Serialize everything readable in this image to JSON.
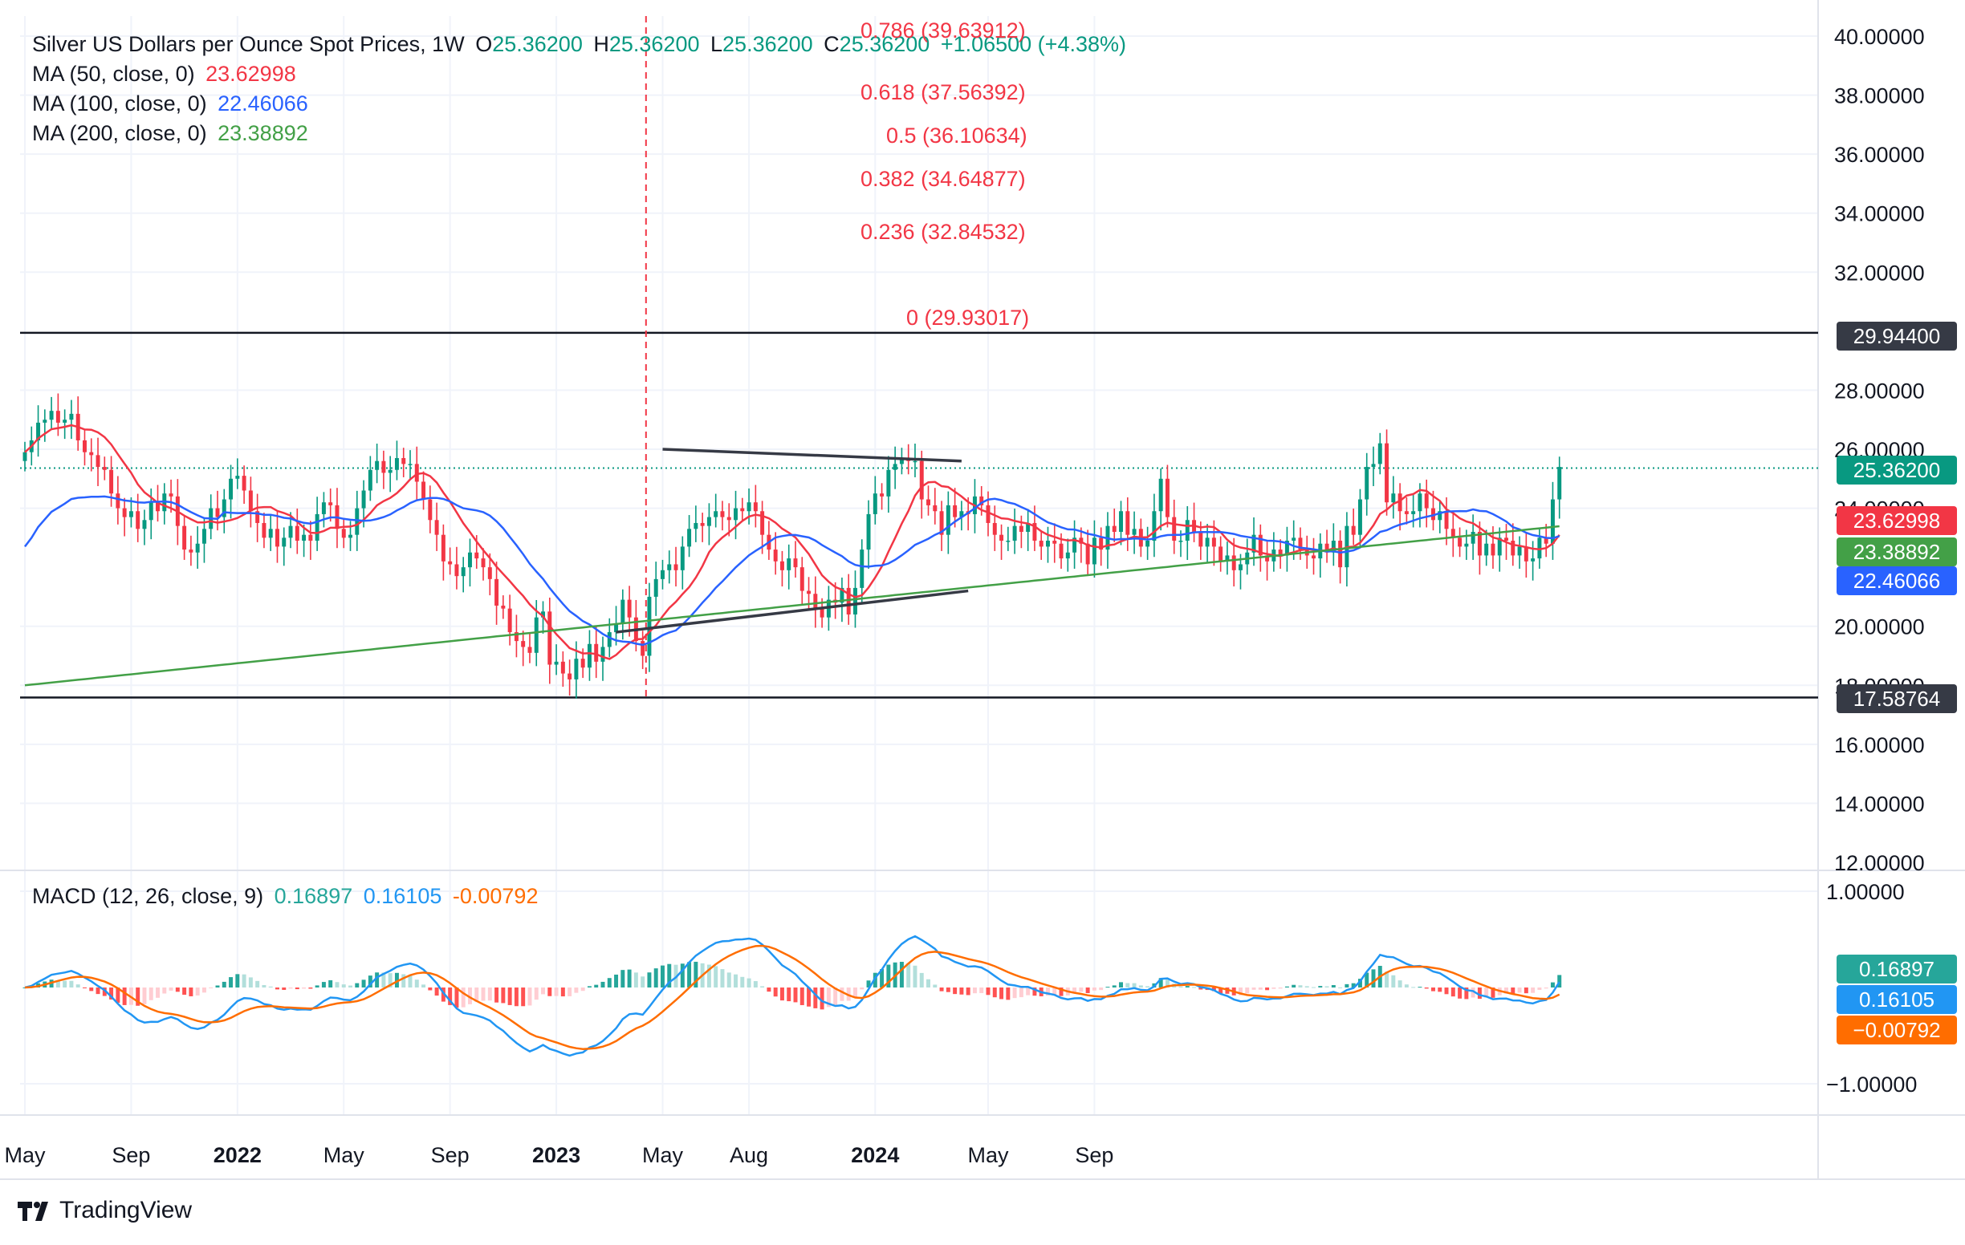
{
  "header": {
    "title": "Silver US Dollars per Ounce Spot Prices, 1W",
    "ohlc": {
      "o_label": "O",
      "o": "25.36200",
      "h_label": "H",
      "h": "25.36200",
      "l_label": "L",
      "l": "25.36200",
      "c_label": "C",
      "c": "25.36200",
      "change": "+1.06500 (+4.38%)"
    }
  },
  "indicators": [
    {
      "label": "MA (50, close, 0)",
      "value": "23.62998",
      "color": "#f23645"
    },
    {
      "label": "MA (100, close, 0)",
      "value": "22.46066",
      "color": "#2962ff"
    },
    {
      "label": "MA (200, close, 0)",
      "value": "23.38892",
      "color": "#43a047"
    }
  ],
  "macd_legend": {
    "label": "MACD (12, 26, close, 9)",
    "hist": "0.16897",
    "macd": "0.16105",
    "signal": "-0.00792"
  },
  "fib_levels": [
    {
      "label": "0.786 (39.63912)",
      "value": 39.63912
    },
    {
      "label": "0.618 (37.56392)",
      "value": 37.56392
    },
    {
      "label": "0.5 (36.10634)",
      "value": 36.10634
    },
    {
      "label": "0.382 (34.64877)",
      "value": 34.64877
    },
    {
      "label": "0.236 (32.84532)",
      "value": 32.84532
    },
    {
      "label": "0 (29.93017)",
      "value": 29.93017
    }
  ],
  "price_boxes": [
    {
      "label": "29.94400",
      "value": 29.944,
      "color": "#363a45"
    },
    {
      "label": "25.36200",
      "value": 25.362,
      "color": "#089981"
    },
    {
      "label": "23.62998",
      "value": 23.62998,
      "color": "#f23645"
    },
    {
      "label": "23.38892",
      "value": 23.38892,
      "color": "#43a047"
    },
    {
      "label": "22.46066",
      "value": 22.46066,
      "color": "#2962ff"
    },
    {
      "label": "17.58764",
      "value": 17.58764,
      "color": "#363a45"
    }
  ],
  "macd_boxes": [
    {
      "label": "0.16897",
      "value": 0.16897,
      "color": "#26a69a"
    },
    {
      "label": "0.16105",
      "value": 0.16105,
      "color": "#2196f3"
    },
    {
      "label": "−0.00792",
      "value": -0.00792,
      "color": "#ff6d00"
    }
  ],
  "brand": "TradingView",
  "colors": {
    "up": "#089981",
    "down": "#f23645",
    "ma50": "#f23645",
    "ma100": "#2962ff",
    "ma200": "#43a047",
    "macd": "#2196f3",
    "signal": "#ff6d00",
    "grid": "#f0f3fa",
    "hline": "#131722"
  },
  "chart_data": {
    "type": "candlestick",
    "title": "Silver US Dollars per Ounce Spot Prices, 1W",
    "y_axis": {
      "min": 12,
      "max": 40,
      "ticks": [
        "40.00000",
        "38.00000",
        "36.00000",
        "34.00000",
        "32.00000",
        "28.00000",
        "26.00000",
        "24.00000",
        "20.00000",
        "18.00000",
        "16.00000",
        "14.00000",
        "12.00000"
      ]
    },
    "x_axis": {
      "ticks": [
        {
          "label": "May",
          "week": 0
        },
        {
          "label": "Sep",
          "week": 16
        },
        {
          "label": "2022",
          "week": 32
        },
        {
          "label": "May",
          "week": 48
        },
        {
          "label": "Sep",
          "week": 64
        },
        {
          "label": "2023",
          "week": 80
        },
        {
          "label": "May",
          "week": 96
        },
        {
          "label": "Aug",
          "week": 109
        },
        {
          "label": "2024",
          "week": 128
        },
        {
          "label": "May",
          "week": 145
        },
        {
          "label": "Sep",
          "week": 161
        }
      ]
    },
    "horizontal_lines": [
      29.944,
      17.58764
    ],
    "current_price": 25.362,
    "event_week": 93.5,
    "triangle": {
      "upper": [
        {
          "week": 96,
          "price": 26.0
        },
        {
          "week": 141,
          "price": 25.6
        }
      ],
      "lower": [
        {
          "week": 89,
          "price": 19.8
        },
        {
          "week": 142,
          "price": 21.2
        }
      ]
    },
    "closes": [
      25.9,
      26.3,
      26.9,
      27.0,
      27.3,
      26.9,
      27.0,
      27.2,
      26.3,
      25.9,
      25.8,
      25.4,
      25.3,
      24.5,
      24.0,
      23.7,
      23.9,
      23.3,
      23.6,
      24.2,
      23.9,
      24.5,
      24.4,
      23.4,
      22.6,
      22.5,
      22.8,
      23.3,
      24.0,
      23.7,
      24.3,
      25.0,
      25.1,
      24.6,
      23.9,
      23.5,
      23.0,
      23.3,
      22.7,
      23.0,
      23.4,
      22.9,
      23.1,
      22.9,
      23.8,
      24.2,
      24.1,
      23.3,
      23.0,
      23.1,
      24.0,
      24.6,
      25.3,
      25.6,
      25.2,
      25.3,
      25.7,
      25.5,
      25.5,
      24.9,
      24.3,
      23.6,
      23.1,
      22.2,
      22.1,
      21.7,
      22.0,
      22.5,
      22.3,
      22.0,
      21.6,
      20.7,
      20.6,
      19.8,
      19.5,
      19.3,
      19.1,
      20.3,
      20.5,
      18.7,
      18.8,
      18.4,
      18.2,
      18.9,
      18.6,
      19.4,
      18.8,
      19.3,
      19.8,
      20.1,
      20.9,
      20.3,
      19.5,
      19.0,
      21.0,
      21.6,
      21.9,
      22.1,
      21.9,
      22.7,
      23.3,
      23.5,
      23.4,
      23.7,
      23.9,
      23.7,
      23.6,
      24.0,
      23.9,
      24.2,
      23.9,
      23.1,
      22.6,
      22.2,
      21.9,
      22.3,
      22.0,
      21.2,
      21.1,
      20.6,
      20.3,
      20.9,
      20.8,
      21.3,
      20.4,
      21.3,
      22.6,
      23.8,
      24.5,
      24.4,
      25.3,
      25.5,
      25.7,
      25.6,
      25.6,
      24.3,
      24.1,
      23.9,
      23.1,
      24.1,
      23.7,
      23.9,
      23.8,
      24.4,
      24.1,
      23.5,
      23.1,
      22.9,
      22.9,
      23.4,
      23.2,
      23.5,
      22.9,
      22.7,
      22.9,
      22.8,
      22.3,
      22.5,
      23.0,
      22.8,
      22.1,
      23.0,
      22.6,
      23.4,
      23.2,
      23.9,
      23.1,
      23.3,
      22.7,
      22.9,
      23.9,
      25.0,
      23.7,
      22.9,
      22.9,
      23.6,
      23.2,
      22.7,
      23.0,
      22.7,
      22.2,
      22.4,
      21.9,
      22.1,
      22.5,
      23.1,
      22.4,
      22.2,
      22.6,
      22.4,
      22.9,
      23.0,
      22.6,
      22.4,
      22.3,
      22.8,
      22.5,
      22.9,
      22.0,
      23.4,
      23.1,
      24.3,
      25.4,
      25.5,
      26.2,
      24.2,
      24.5,
      23.9,
      23.8,
      23.9,
      24.5,
      24.0,
      23.6,
      23.9,
      23.3,
      23.0,
      22.7,
      22.8,
      23.2,
      22.4,
      22.8,
      22.4,
      23.0,
      22.9,
      22.4,
      22.7,
      22.2,
      22.3,
      23.0,
      22.8,
      24.3,
      25.4
    ],
    "series": [
      {
        "name": "MA (50, close, 0)",
        "last": 23.62998
      },
      {
        "name": "MA (100, close, 0)",
        "last": 22.46066
      },
      {
        "name": "MA (200, close, 0)",
        "last": 23.38892
      }
    ],
    "macd": {
      "label": "MACD (12, 26, close, 9)",
      "y_ticks": [
        "1.00000",
        "-1.00000"
      ],
      "hist_last": 0.16897,
      "macd_last": 0.16105,
      "signal_last": -0.00792
    }
  }
}
